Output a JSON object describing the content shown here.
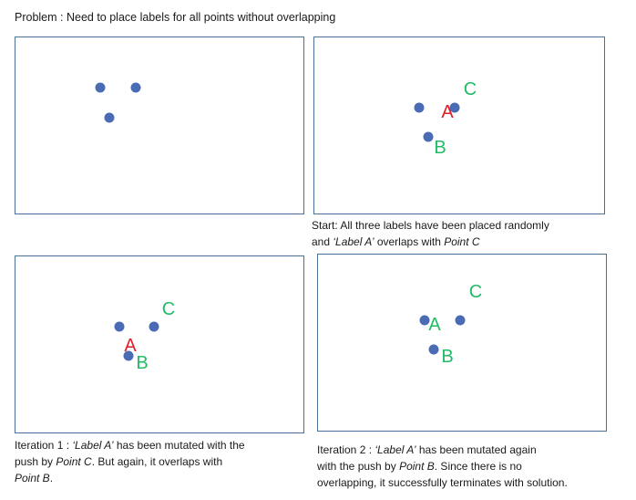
{
  "title": "Problem : Need to place labels for all points without overlapping",
  "colors": {
    "point": "#4a6cb5",
    "label_ok": "#22bb66",
    "label_conflict": "#e0202a",
    "frame": "#4a6f9a"
  },
  "panels": [
    {
      "labels": []
    },
    {
      "labels": {
        "a": "A",
        "b": "B",
        "c": "C"
      },
      "caption": {
        "line1": "Start: All three labels have been placed randomly",
        "line2_italic": "‘Label A’",
        "line2_mid": " overlaps with ",
        "line2_italic2": "Point C"
      }
    },
    {
      "labels": {
        "a": "A",
        "b": "B",
        "c": "C"
      },
      "caption": {
        "p1": "Iteration 1 : ",
        "i1": "‘Label A’",
        "p2": " has been mutated with the",
        "p3": "push by ",
        "i2": "Point C",
        "p4": ". But again, it overlaps with",
        "i3": "Point B",
        "p5": "."
      }
    },
    {
      "labels": {
        "a": "A",
        "b": "B",
        "c": "C"
      },
      "caption": {
        "p1": "Iteration 2 : ",
        "i1": "‘Label A’",
        "p2": " has been mutated again",
        "p3": "with the push by ",
        "i2": "Point B",
        "p4": ". Since there is no",
        "p5": "overlapping, it successfully terminates with solution."
      }
    }
  ]
}
